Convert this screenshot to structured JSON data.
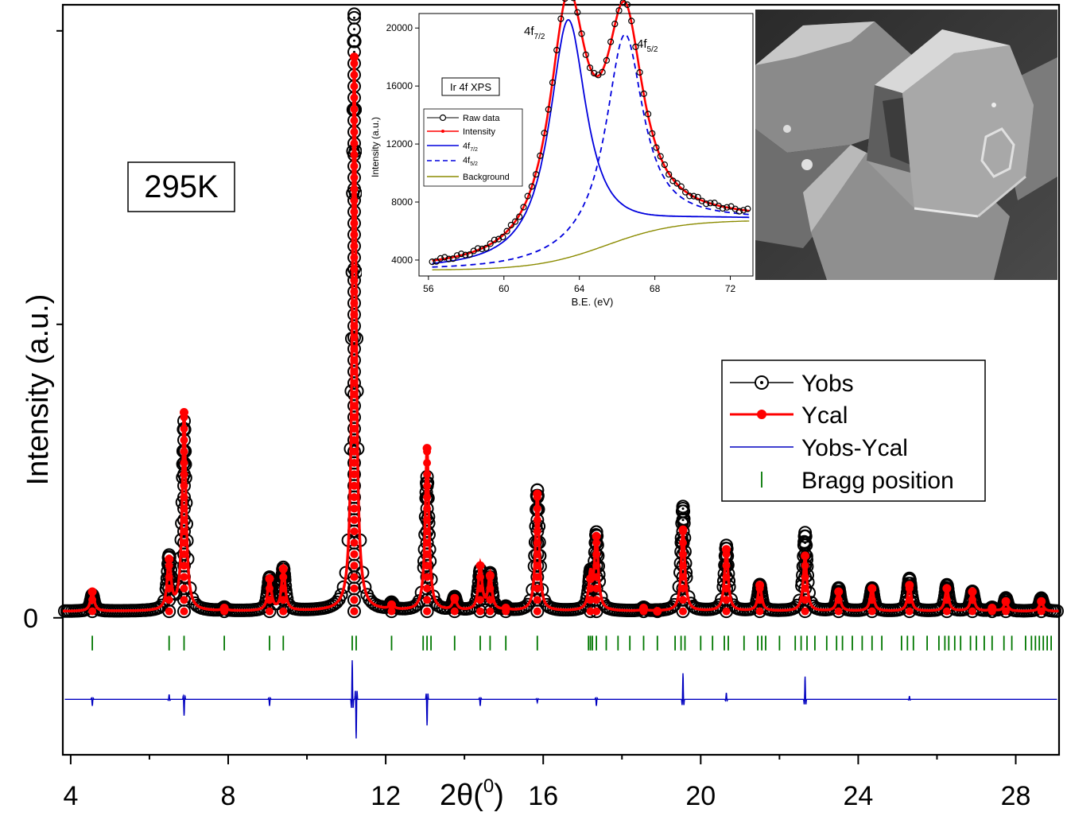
{
  "chart_data": [
    {
      "type": "line",
      "title": "",
      "temperature_label": "295K",
      "xlabel_prefix": "2θ(",
      "xlabel_sup": "0",
      "xlabel_suffix": ")",
      "ylabel": "Intensity (a.u.)",
      "xlim": [
        3.8,
        29.1
      ],
      "ylim": [
        -42,
        188
      ],
      "xticks": [
        4,
        8,
        12,
        16,
        20,
        24,
        28
      ],
      "yticks": [
        0
      ],
      "baseline": 2,
      "peaks": [
        {
          "x": 4.55,
          "yobs": 7,
          "ycal": 8
        },
        {
          "x": 6.5,
          "yobs": 18,
          "ycal": 18
        },
        {
          "x": 6.88,
          "yobs": 60,
          "ycal": 63
        },
        {
          "x": 7.9,
          "yobs": 3,
          "ycal": 3
        },
        {
          "x": 9.05,
          "yobs": 12,
          "ycal": 12
        },
        {
          "x": 9.4,
          "yobs": 15,
          "ycal": 15
        },
        {
          "x": 11.2,
          "yobs": 185,
          "ycal": 172
        },
        {
          "x": 12.15,
          "yobs": 4,
          "ycal": 4
        },
        {
          "x": 13.05,
          "yobs": 43,
          "ycal": 52
        },
        {
          "x": 13.75,
          "yobs": 6,
          "ycal": 6
        },
        {
          "x": 14.4,
          "yobs": 14,
          "ycal": 16
        },
        {
          "x": 14.65,
          "yobs": 13,
          "ycal": 13
        },
        {
          "x": 15.05,
          "yobs": 3,
          "ycal": 3
        },
        {
          "x": 15.85,
          "yobs": 39,
          "ycal": 38
        },
        {
          "x": 17.2,
          "yobs": 12,
          "ycal": 12
        },
        {
          "x": 17.35,
          "yobs": 25,
          "ycal": 25
        },
        {
          "x": 18.55,
          "yobs": 3,
          "ycal": 3
        },
        {
          "x": 18.9,
          "yobs": 2,
          "ycal": 2
        },
        {
          "x": 19.55,
          "yobs": 34,
          "ycal": 27
        },
        {
          "x": 20.65,
          "yobs": 22,
          "ycal": 21
        },
        {
          "x": 21.5,
          "yobs": 10,
          "ycal": 10
        },
        {
          "x": 22.65,
          "yobs": 26,
          "ycal": 19
        },
        {
          "x": 23.5,
          "yobs": 9,
          "ycal": 8
        },
        {
          "x": 24.35,
          "yobs": 9,
          "ycal": 9
        },
        {
          "x": 25.3,
          "yobs": 12,
          "ycal": 10
        },
        {
          "x": 26.25,
          "yobs": 10,
          "ycal": 9
        },
        {
          "x": 26.9,
          "yobs": 8,
          "ycal": 8
        },
        {
          "x": 27.4,
          "yobs": 3,
          "ycal": 3
        },
        {
          "x": 27.75,
          "yobs": 6,
          "ycal": 5
        },
        {
          "x": 28.65,
          "yobs": 6,
          "ycal": 5
        }
      ],
      "bragg_positions": [
        4.55,
        6.5,
        6.88,
        7.9,
        9.05,
        9.4,
        11.15,
        11.25,
        12.15,
        12.95,
        13.05,
        13.15,
        13.75,
        14.4,
        14.65,
        15.05,
        15.85,
        17.15,
        17.2,
        17.25,
        17.35,
        17.6,
        17.9,
        18.2,
        18.55,
        18.9,
        19.35,
        19.5,
        19.6,
        20.0,
        20.3,
        20.6,
        20.7,
        21.1,
        21.45,
        21.55,
        21.65,
        22.0,
        22.4,
        22.55,
        22.7,
        22.9,
        23.2,
        23.45,
        23.6,
        23.85,
        24.1,
        24.35,
        24.6,
        25.1,
        25.25,
        25.4,
        25.75,
        26.05,
        26.2,
        26.3,
        26.45,
        26.6,
        26.85,
        27.0,
        27.2,
        27.4,
        27.7,
        27.9,
        28.25,
        28.4,
        28.5,
        28.6,
        28.7,
        28.8,
        28.9
      ],
      "difference_offset": -25,
      "difference_spikes": [
        {
          "x": 4.55,
          "dy": -2
        },
        {
          "x": 6.5,
          "dy": 1.5
        },
        {
          "x": 6.88,
          "dy": -5
        },
        {
          "x": 9.05,
          "dy": -2
        },
        {
          "x": 11.15,
          "dy": 12
        },
        {
          "x": 11.25,
          "dy": -12
        },
        {
          "x": 13.05,
          "dy": -8
        },
        {
          "x": 14.4,
          "dy": -2
        },
        {
          "x": 15.85,
          "dy": -1
        },
        {
          "x": 17.35,
          "dy": -2
        },
        {
          "x": 19.55,
          "dy": 8
        },
        {
          "x": 20.65,
          "dy": 2
        },
        {
          "x": 22.65,
          "dy": 7
        },
        {
          "x": 25.3,
          "dy": 1
        }
      ],
      "legend": [
        {
          "label": "Yobs",
          "color": "#000000",
          "style": "open-circle"
        },
        {
          "label": "Ycal",
          "color": "#ff0000",
          "style": "filled-circle"
        },
        {
          "label": "Yobs-Ycal",
          "color": "#0000c0",
          "style": "line"
        },
        {
          "label": "Bragg position",
          "color": "#007700",
          "style": "tick"
        }
      ]
    },
    {
      "type": "line",
      "title": "Ir 4f XPS",
      "xlabel": "B.E. (eV)",
      "ylabel": "Intensity (a.u.)",
      "xlim": [
        55.5,
        73.2
      ],
      "ylim": [
        2900,
        21000
      ],
      "xticks": [
        56,
        60,
        64,
        68,
        72
      ],
      "yticks": [
        4000,
        8000,
        12000,
        16000,
        20000
      ],
      "background": {
        "from_x": 56.2,
        "to_x": 73,
        "low": 3300,
        "high": 6750
      },
      "peak_7_2": {
        "label_main": "4f",
        "label_sub": "7/2",
        "center": 63.4,
        "height": 16400,
        "width": 1.2
      },
      "peak_5_2": {
        "label_main": "4f",
        "label_sub": "5/2",
        "center": 66.4,
        "height": 14100,
        "width": 1.2
      },
      "legend": [
        {
          "label": "Raw data",
          "color": "#000000"
        },
        {
          "label": "Intensity",
          "color": "#ff0000"
        },
        {
          "label_main": "4f",
          "label_sub": "7/2",
          "color": "#0000dd"
        },
        {
          "label_main": "4f",
          "label_sub": "5/2",
          "color": "#0000dd"
        },
        {
          "label": "Background",
          "color": "#8b8b00"
        }
      ]
    }
  ],
  "icons": {
    "sem_image": "sem-crystal-image"
  }
}
